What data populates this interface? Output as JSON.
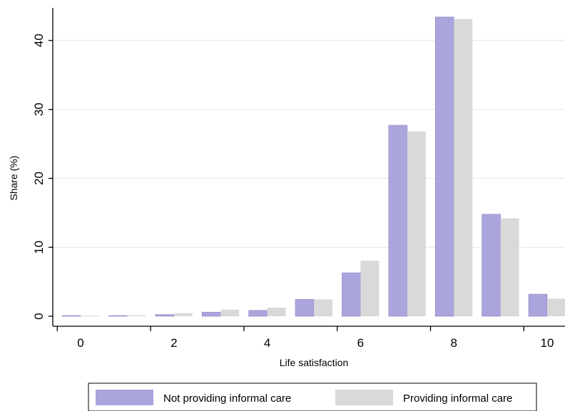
{
  "chart_data": {
    "type": "bar",
    "title": "",
    "xlabel": "Life satisfaction",
    "ylabel": "Share (%)",
    "categories": [
      0,
      1,
      2,
      3,
      4,
      5,
      6,
      7,
      8,
      9,
      10
    ],
    "x_tick_labels": [
      "0",
      "2",
      "4",
      "6",
      "8",
      "10"
    ],
    "y_tick_labels": [
      "0",
      "10",
      "20",
      "30",
      "40"
    ],
    "ylim": [
      0,
      45
    ],
    "grid": true,
    "legend_position": "bottom",
    "series": [
      {
        "name": "Not providing informal care",
        "color": "#aaa5dc",
        "values": [
          0.05,
          0.1,
          0.25,
          0.6,
          0.85,
          2.45,
          6.3,
          27.7,
          43.4,
          14.8,
          3.2
        ]
      },
      {
        "name": "Providing informal care",
        "color": "#d9d9d9",
        "values": [
          0.05,
          0.15,
          0.45,
          0.95,
          1.25,
          2.45,
          8.05,
          26.8,
          43.1,
          14.2,
          2.55
        ]
      }
    ]
  }
}
